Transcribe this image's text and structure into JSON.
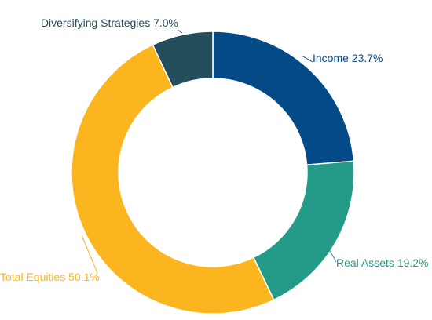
{
  "chart_data": {
    "type": "pie",
    "variant": "donut",
    "legend": "none",
    "slices": [
      {
        "label": "Income 23.7%",
        "name": "Income",
        "value": 23.7,
        "color": "#044a86"
      },
      {
        "label": "Real Assets 19.2%",
        "name": "Real Assets",
        "value": 19.2,
        "color": "#249a89"
      },
      {
        "label": "Total Equities 50.1%",
        "name": "Total Equities",
        "value": 50.1,
        "color": "#fbb51f"
      },
      {
        "label": "Diversifying Strategies 7.0%",
        "name": "Diversifying Strategies",
        "value": 7.0,
        "color": "#244e5b"
      }
    ],
    "label_colors": [
      "#044a86",
      "#249a89",
      "#fbb51f",
      "#244e5b"
    ]
  }
}
